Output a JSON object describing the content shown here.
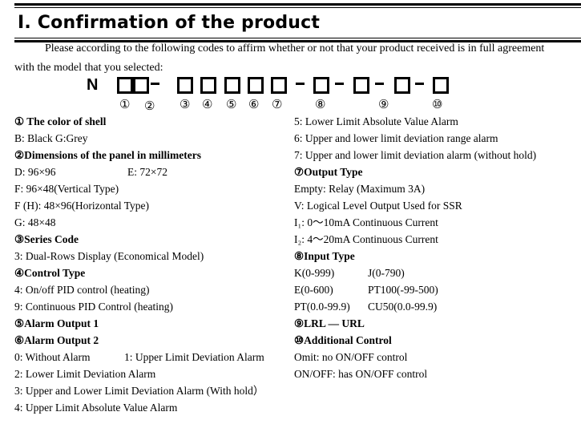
{
  "title": "I.  Confirmation of the product",
  "intro_line1": "Please according to the following codes to affirm whether or not that your product received is in full agreement",
  "intro_line2": "with the model that you selected:",
  "code": {
    "prefix": "N",
    "numbers": [
      "①",
      "②",
      "③",
      "④",
      "⑤",
      "⑥",
      "⑦",
      "⑧",
      "⑨",
      "⑩"
    ]
  },
  "left_column": [
    {
      "text": "①  The color of shell",
      "bold": true
    },
    {
      "text": "B: Black      G:Grey",
      "bold": false
    },
    {
      "text": "②Dimensions of the panel in millimeters",
      "bold": true
    },
    {
      "text": "D: 96×96",
      "text2": "E: 72×72",
      "bold": false
    },
    {
      "text": "F: 96×48(Vertical Type)",
      "bold": false
    },
    {
      "text": "F (H): 48×96(Horizontal Type)",
      "bold": false
    },
    {
      "text": "G: 48×48",
      "bold": false
    },
    {
      "text": "③Series Code",
      "bold": true
    },
    {
      "text": "3: Dual-Rows Display (Economical Model)",
      "bold": false
    },
    {
      "text": "④Control Type",
      "bold": true
    },
    {
      "text": "4: On/off PID control (heating)",
      "bold": false
    },
    {
      "text": "9: Continuous PID Control (heating)",
      "bold": false
    },
    {
      "text": "⑤Alarm Output 1",
      "bold": true
    },
    {
      "text": "⑥Alarm Output 2",
      "bold": true
    },
    {
      "text": "0: Without Alarm",
      "text2": "1: Upper Limit Deviation Alarm",
      "bold": false
    },
    {
      "text": "2: Lower Limit Deviation Alarm",
      "bold": false
    },
    {
      "text": "3: Upper and Lower Limit Deviation Alarm (With hold）",
      "bold": false
    },
    {
      "text": "4: Upper Limit Absolute Value Alarm",
      "bold": false
    }
  ],
  "right_column": [
    {
      "text": "5: Lower Limit Absolute Value Alarm",
      "bold": false
    },
    {
      "text": "6: Upper and lower limit deviation range alarm",
      "bold": false
    },
    {
      "text": "7: Upper and lower limit deviation alarm (without hold)",
      "bold": false
    },
    {
      "text": "⑦Output Type",
      "bold": true
    },
    {
      "text": "Empty: Relay (Maximum 3A)",
      "bold": false
    },
    {
      "text": "V: Logical Level Output Used for SSR",
      "bold": false
    },
    {
      "text": "I₁: 0～10mA Continuous Current",
      "bold": false
    },
    {
      "text": "I₂: 4～20mA Continuous Current",
      "bold": false
    },
    {
      "text": "⑧Input Type",
      "bold": true
    },
    {
      "text": "K(0-999)",
      "text2": "J(0-790)",
      "bold": false
    },
    {
      "text": "E(0-600)",
      "text2": "PT100(-99-500)",
      "bold": false
    },
    {
      "text": "PT(0.0-99.9)",
      "text2": "CU50(0.0-99.9)",
      "bold": false
    },
    {
      "text": "⑨LRL  —  URL",
      "bold": true
    },
    {
      "text": "⑩Additional Control",
      "bold": true
    },
    {
      "text": "Omit: no ON/OFF control",
      "bold": false
    },
    {
      "text": "ON/OFF: has ON/OFF control",
      "bold": false
    }
  ]
}
